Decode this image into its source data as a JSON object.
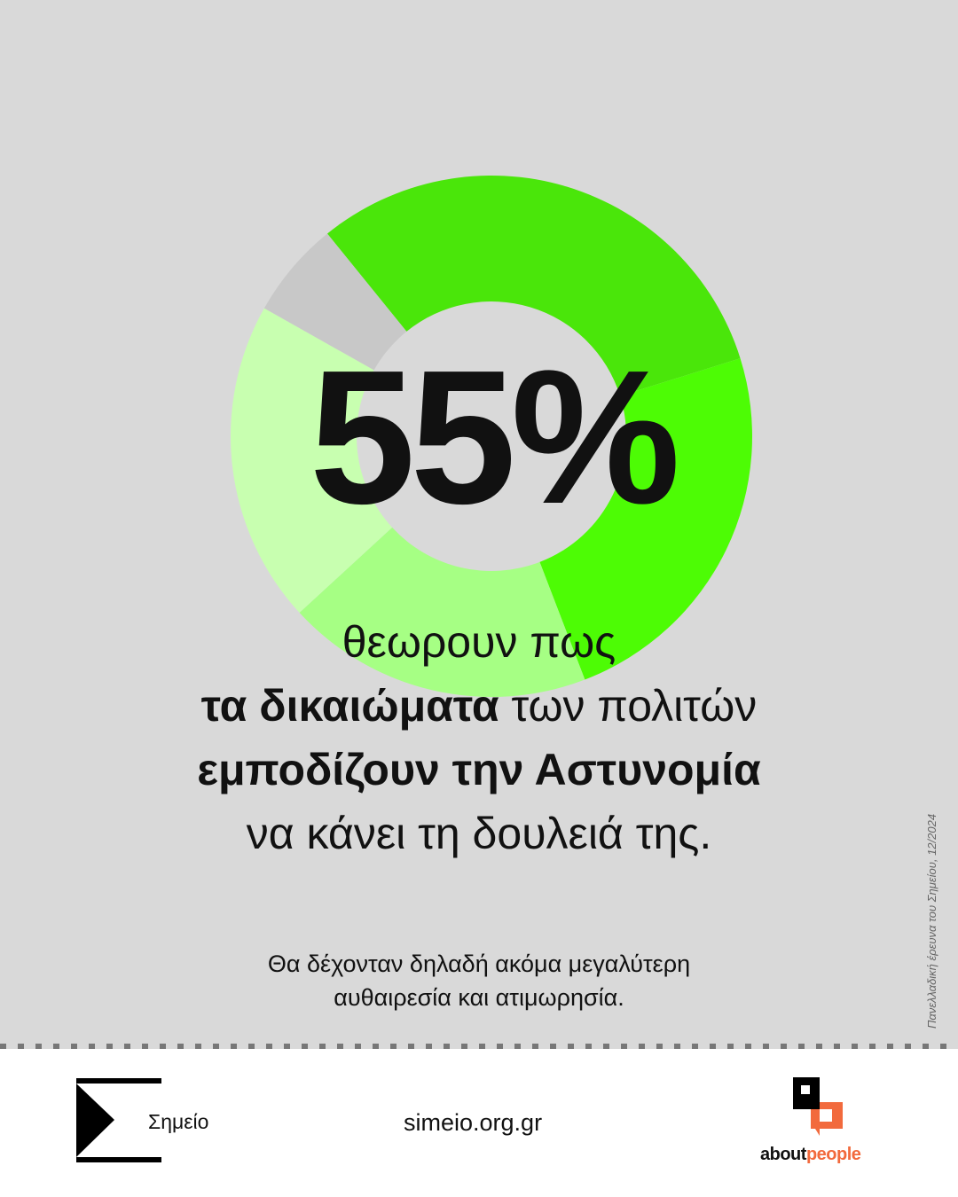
{
  "chart_data": {
    "type": "pie",
    "variant": "donut",
    "values": [
      31,
      24,
      19,
      20,
      6
    ],
    "colors": [
      "#4ae60a",
      "#4dfc05",
      "#a6ff84",
      "#c8ffb0",
      "#c8c8c8"
    ],
    "highlight_value": "55%"
  },
  "headline": {
    "line1": "θεωρουν πως",
    "line2_bold": "τα δικαιώματα",
    "line2_rest": " των πολιτών",
    "line3_bold": "εμποδίζουν την Αστυνομία",
    "line4": "να κάνει τη δουλειά της."
  },
  "subtext": {
    "line1": "Θα δέχονταν δηλαδή ακόμα μεγαλύτερη",
    "line2": "αυθαιρεσία και ατιμωρησία."
  },
  "source": "Πανελλαδική έρευνα του Σημείου, 12/2024",
  "footer": {
    "brand": "Σημείο",
    "url": "simeio.org.gr",
    "partner_a": "about",
    "partner_b": "people",
    "accent": "#f26a3d"
  },
  "background": "#d9d9d9"
}
